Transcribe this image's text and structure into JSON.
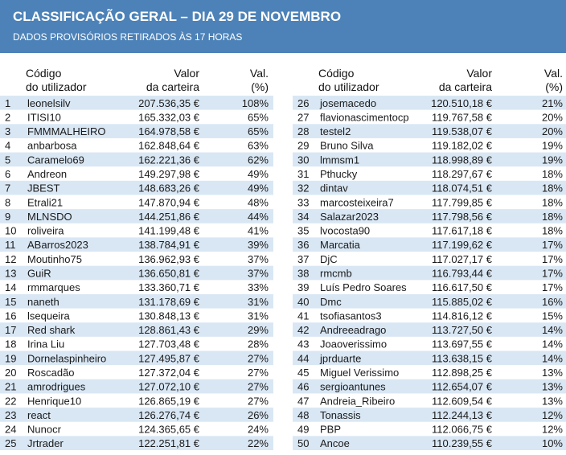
{
  "header": {
    "title": "CLASSIFICAÇÃO GERAL – DIA 29 DE NOVEMBRO",
    "subtitle": "DADOS PROVISÓRIOS RETIRADOS ÀS 17 HORAS"
  },
  "tables": [
    {
      "columns": [
        [
          "Código",
          "do utilizador"
        ],
        [
          "Valor",
          "da carteira"
        ],
        [
          "Val.",
          "(%)"
        ]
      ],
      "rows": [
        [
          "1",
          "leonelsilv",
          "207.536,35 €",
          "108%"
        ],
        [
          "2",
          "ITISI10",
          "165.332,03 €",
          "65%"
        ],
        [
          "3",
          "FMMMALHEIRO",
          "164.978,58 €",
          "65%"
        ],
        [
          "4",
          "anbarbosa",
          "162.848,64 €",
          "63%"
        ],
        [
          "5",
          "Caramelo69",
          "162.221,36 €",
          "62%"
        ],
        [
          "6",
          "Andreon",
          "149.297,98 €",
          "49%"
        ],
        [
          "7",
          "JBEST",
          "148.683,26 €",
          "49%"
        ],
        [
          "8",
          "Etrali21",
          "147.870,94 €",
          "48%"
        ],
        [
          "9",
          "MLNSDO",
          "144.251,86 €",
          "44%"
        ],
        [
          "10",
          "roliveira",
          "141.199,48 €",
          "41%"
        ],
        [
          "11",
          "ABarros2023",
          "138.784,91 €",
          "39%"
        ],
        [
          "12",
          "Moutinho75",
          "136.962,93 €",
          "37%"
        ],
        [
          "13",
          "GuiR",
          "136.650,81 €",
          "37%"
        ],
        [
          "14",
          "rmmarques",
          "133.360,71 €",
          "33%"
        ],
        [
          "15",
          "naneth",
          "131.178,69 €",
          "31%"
        ],
        [
          "16",
          "lsequeira",
          "130.848,13 €",
          "31%"
        ],
        [
          "17",
          "Red shark",
          "128.861,43 €",
          "29%"
        ],
        [
          "18",
          "Irina Liu",
          "127.703,48 €",
          "28%"
        ],
        [
          "19",
          "Dornelaspinheiro",
          "127.495,87 €",
          "27%"
        ],
        [
          "20",
          "Roscadão",
          "127.372,04 €",
          "27%"
        ],
        [
          "21",
          "amrodrigues",
          "127.072,10 €",
          "27%"
        ],
        [
          "22",
          "Henrique10",
          "126.865,19 €",
          "27%"
        ],
        [
          "23",
          "react",
          "126.276,74 €",
          "26%"
        ],
        [
          "24",
          "Nunocr",
          "124.365,65 €",
          "24%"
        ],
        [
          "25",
          "Jrtrader",
          "122.251,81 €",
          "22%"
        ]
      ]
    },
    {
      "columns": [
        [
          "Código",
          "do utilizador"
        ],
        [
          "Valor",
          "da carteira"
        ],
        [
          "Val.",
          "(%)"
        ]
      ],
      "rows": [
        [
          "26",
          "josemacedo",
          "120.510,18 €",
          "21%"
        ],
        [
          "27",
          "flavionascimentocp",
          "119.767,58 €",
          "20%"
        ],
        [
          "28",
          "testel2",
          "119.538,07 €",
          "20%"
        ],
        [
          "29",
          "Bruno Silva",
          "119.182,02 €",
          "19%"
        ],
        [
          "30",
          "lmmsm1",
          "118.998,89 €",
          "19%"
        ],
        [
          "31",
          "Pthucky",
          "118.297,67 €",
          "18%"
        ],
        [
          "32",
          "dintav",
          "118.074,51 €",
          "18%"
        ],
        [
          "33",
          "marcosteixeira7",
          "117.799,85 €",
          "18%"
        ],
        [
          "34",
          "Salazar2023",
          "117.798,56 €",
          "18%"
        ],
        [
          "35",
          "lvocosta90",
          "117.617,18 €",
          "18%"
        ],
        [
          "36",
          "Marcatia",
          "117.199,62 €",
          "17%"
        ],
        [
          "37",
          "DjC",
          "117.027,17 €",
          "17%"
        ],
        [
          "38",
          "rmcmb",
          "116.793,44 €",
          "17%"
        ],
        [
          "39",
          "Luís Pedro Soares",
          "116.617,50 €",
          "17%"
        ],
        [
          "40",
          "Dmc",
          "115.885,02 €",
          "16%"
        ],
        [
          "41",
          "tsofiasantos3",
          "114.816,12 €",
          "15%"
        ],
        [
          "42",
          "Andreeadrago",
          "113.727,50 €",
          "14%"
        ],
        [
          "43",
          "Joaoverissimo",
          "113.697,55 €",
          "14%"
        ],
        [
          "44",
          "jprduarte",
          "113.638,15 €",
          "14%"
        ],
        [
          "45",
          "Miguel Verissimo",
          "112.898,25 €",
          "13%"
        ],
        [
          "46",
          "sergioantunes",
          "112.654,07 €",
          "13%"
        ],
        [
          "47",
          "Andreia_Ribeiro",
          "112.609,54 €",
          "13%"
        ],
        [
          "48",
          "Tonassis",
          "112.244,13 €",
          "12%"
        ],
        [
          "49",
          "PBP",
          "112.066,75 €",
          "12%"
        ],
        [
          "50",
          "Ancoe",
          "110.239,55 €",
          "10%"
        ]
      ]
    }
  ]
}
